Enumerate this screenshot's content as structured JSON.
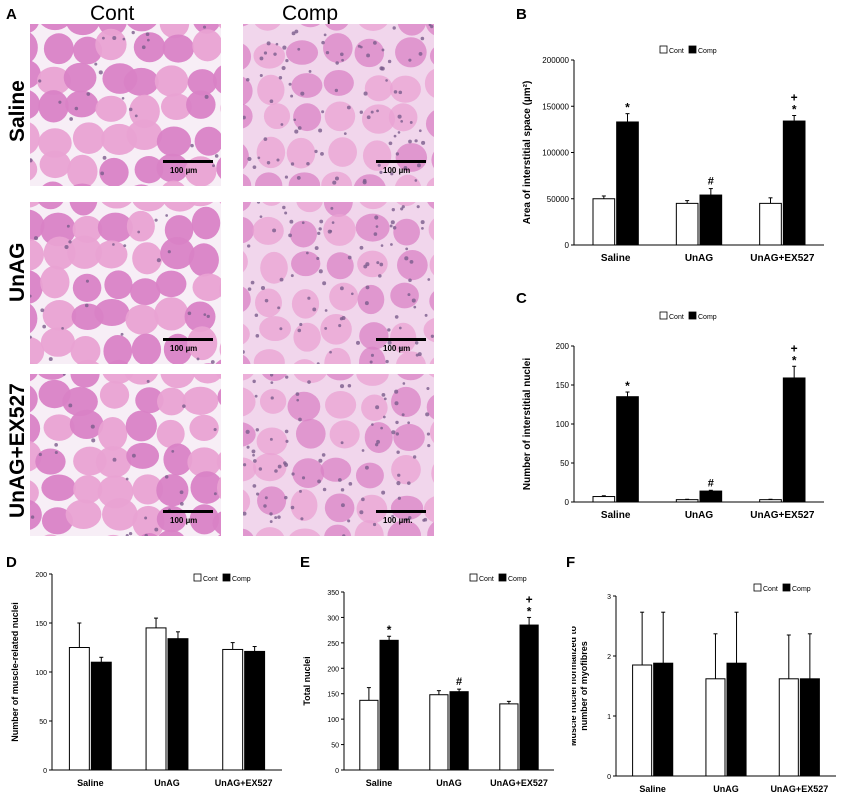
{
  "figure": {
    "panel_letters": {
      "A": "A",
      "B": "B",
      "C": "C",
      "D": "D",
      "E": "E",
      "F": "F"
    },
    "micrographs": {
      "column_headers": [
        "Cont",
        "Comp"
      ],
      "row_labels": [
        "Saline",
        "UnAG",
        "UnAG+EX527"
      ],
      "scale_labels": [
        [
          "100 µm",
          "100 µm"
        ],
        [
          "100 µm",
          "100 µm"
        ],
        [
          "100 µm",
          "100 µm."
        ]
      ],
      "colors": {
        "stain": "#e9a2d3",
        "fiber": "#d982c6",
        "gap": "#f7eef6",
        "nuclei": "#7a5c8c"
      }
    },
    "legend": {
      "cont": "Cont",
      "comp": "Comp"
    }
  },
  "chart_data": [
    {
      "id": "B",
      "type": "bar",
      "categories": [
        "Saline",
        "UnAG",
        "UnAG+EX527"
      ],
      "series": [
        {
          "name": "Cont",
          "values": [
            50000,
            45000,
            45000
          ],
          "errors": [
            3000,
            3000,
            6000
          ],
          "color": "#ffffff"
        },
        {
          "name": "Comp",
          "values": [
            133000,
            54000,
            134000
          ],
          "errors": [
            9000,
            7000,
            6000
          ],
          "color": "#000000"
        }
      ],
      "ylabel": "Area of interstitial space (µm²)",
      "ylim": [
        0,
        200000
      ],
      "yticks": [
        "0",
        "50000",
        "100000",
        "150000",
        "200000"
      ],
      "annotations": [
        [
          "",
          ""
        ],
        [
          "",
          "#"
        ],
        [
          "",
          ""
        ]
      ],
      "annotations_top": [
        [
          "",
          "*"
        ],
        [
          "",
          ""
        ],
        [
          "",
          "*"
        ]
      ],
      "annotations_plus": [
        [
          "",
          ""
        ],
        [
          "",
          ""
        ],
        [
          "",
          "+"
        ]
      ]
    },
    {
      "id": "C",
      "type": "bar",
      "categories": [
        "Saline",
        "UnAG",
        "UnAG+EX527"
      ],
      "series": [
        {
          "name": "Cont",
          "values": [
            7,
            3,
            3
          ],
          "errors": [
            1,
            0.5,
            0.5
          ],
          "color": "#ffffff"
        },
        {
          "name": "Comp",
          "values": [
            135,
            14,
            159
          ],
          "errors": [
            6,
            1,
            15
          ],
          "color": "#000000"
        }
      ],
      "ylabel": "Number of interstitial nuclei",
      "ylim": [
        0,
        200
      ],
      "yticks": [
        "0",
        "50",
        "100",
        "150",
        "200"
      ],
      "annotations": [
        [
          "",
          ""
        ],
        [
          "",
          "#"
        ],
        [
          "",
          ""
        ]
      ],
      "annotations_top": [
        [
          "",
          "*"
        ],
        [
          "",
          ""
        ],
        [
          "",
          "*"
        ]
      ],
      "annotations_plus": [
        [
          "",
          ""
        ],
        [
          "",
          ""
        ],
        [
          "",
          "+"
        ]
      ]
    },
    {
      "id": "D",
      "type": "bar",
      "categories": [
        "Saline",
        "UnAG",
        "UnAG+EX527"
      ],
      "series": [
        {
          "name": "Cont",
          "values": [
            125,
            145,
            123
          ],
          "errors": [
            25,
            10,
            7
          ],
          "color": "#ffffff"
        },
        {
          "name": "Comp",
          "values": [
            110,
            134,
            121
          ],
          "errors": [
            5,
            7,
            5
          ],
          "color": "#000000"
        }
      ],
      "ylabel": "Number of muscle-related nuclei",
      "ylim": [
        0,
        200
      ],
      "yticks": [
        "0",
        "50",
        "100",
        "150",
        "200"
      ],
      "annotations": [
        [
          "",
          ""
        ],
        [
          "",
          ""
        ],
        [
          "",
          ""
        ]
      ],
      "annotations_top": [
        [
          "",
          ""
        ],
        [
          "",
          ""
        ],
        [
          "",
          ""
        ]
      ],
      "annotations_plus": [
        [
          "",
          ""
        ],
        [
          "",
          ""
        ],
        [
          "",
          ""
        ]
      ]
    },
    {
      "id": "E",
      "type": "bar",
      "categories": [
        "Saline",
        "UnAG",
        "UnAG+EX527"
      ],
      "series": [
        {
          "name": "Cont",
          "values": [
            137,
            148,
            130
          ],
          "errors": [
            25,
            8,
            5
          ],
          "color": "#ffffff"
        },
        {
          "name": "Comp",
          "values": [
            255,
            154,
            285
          ],
          "errors": [
            8,
            5,
            15
          ],
          "color": "#000000"
        }
      ],
      "ylabel": "Total nuclei",
      "ylim": [
        0,
        350
      ],
      "yticks": [
        "0",
        "50",
        "100",
        "150",
        "200",
        "250",
        "300",
        "350"
      ],
      "annotations": [
        [
          "",
          ""
        ],
        [
          "",
          "#"
        ],
        [
          "",
          ""
        ]
      ],
      "annotations_top": [
        [
          "",
          "*"
        ],
        [
          "",
          ""
        ],
        [
          "",
          "*"
        ]
      ],
      "annotations_plus": [
        [
          "",
          ""
        ],
        [
          "",
          ""
        ],
        [
          "",
          "+"
        ]
      ]
    },
    {
      "id": "F",
      "type": "bar",
      "categories": [
        "Saline",
        "UnAG",
        "UnAG+EX527"
      ],
      "series": [
        {
          "name": "Cont",
          "values": [
            1.85,
            1.62,
            1.62
          ],
          "errors": [
            0.88,
            0.75,
            0.73
          ],
          "color": "#ffffff"
        },
        {
          "name": "Comp",
          "values": [
            1.88,
            1.88,
            1.62
          ],
          "errors": [
            0.85,
            0.85,
            0.75
          ],
          "color": "#000000"
        }
      ],
      "ylabel": "Muscle nuclei normalized to number of myofibres",
      "ylim": [
        0,
        3
      ],
      "yticks": [
        "0",
        "1",
        "2",
        "3"
      ],
      "annotations": [
        [
          "",
          ""
        ],
        [
          "",
          ""
        ],
        [
          "",
          ""
        ]
      ],
      "annotations_top": [
        [
          "",
          ""
        ],
        [
          "",
          ""
        ],
        [
          "",
          ""
        ]
      ],
      "annotations_plus": [
        [
          "",
          ""
        ],
        [
          "",
          ""
        ],
        [
          "",
          ""
        ]
      ]
    }
  ]
}
